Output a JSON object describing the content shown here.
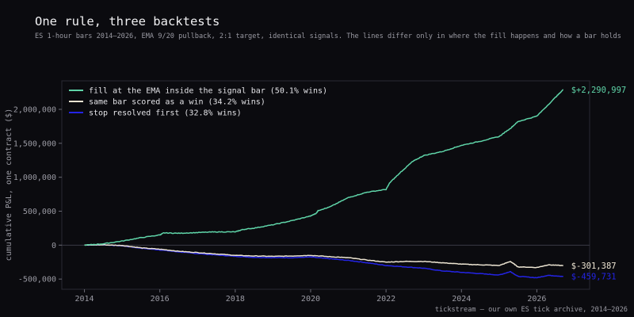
{
  "chart_data": {
    "type": "line",
    "title": "One rule, three backtests",
    "subtitle": "ES 1-hour bars 2014–2026, EMA 9/20 pullback, 2:1 target, identical signals. The lines differ only in where the fill happens and how a bar holds",
    "xlabel": "",
    "ylabel": "cumulative P&L, one contract ($)",
    "xlim": [
      2013.4,
      2027.4
    ],
    "ylim": [
      -650000,
      2420000
    ],
    "x_ticks": [
      2014,
      2016,
      2018,
      2020,
      2022,
      2024,
      2026
    ],
    "y_ticks": [
      -500000,
      0,
      500000,
      1000000,
      1500000,
      2000000
    ],
    "y_tick_labels": [
      "-500,000",
      "0",
      "500,000",
      "1,000,000",
      "1,500,000",
      "2,000,000"
    ],
    "legend_position": "top-left",
    "zero_line": true,
    "grid": false,
    "source": "tickstream — our own ES tick archive, 2014–2026",
    "series": [
      {
        "name": "fill at the EMA inside the signal bar  (50.1% wins)",
        "color": "#5fd4a8",
        "end_label": "$+2,290,997",
        "x": [
          2014.0,
          2014.5,
          2015.0,
          2015.5,
          2016.0,
          2016.1,
          2016.5,
          2017.0,
          2017.5,
          2018.0,
          2018.2,
          2018.5,
          2019.0,
          2019.5,
          2020.0,
          2020.15,
          2020.2,
          2020.5,
          2021.0,
          2021.5,
          2022.0,
          2022.1,
          2022.4,
          2022.7,
          2023.0,
          2023.5,
          2024.0,
          2024.5,
          2025.0,
          2025.3,
          2025.5,
          2026.0,
          2026.5,
          2026.7
        ],
        "y": [
          0,
          20000,
          60000,
          110000,
          150000,
          180000,
          175000,
          185000,
          195000,
          195000,
          230000,
          250000,
          300000,
          360000,
          430000,
          470000,
          510000,
          560000,
          700000,
          780000,
          820000,
          920000,
          1080000,
          1230000,
          1320000,
          1380000,
          1470000,
          1530000,
          1600000,
          1720000,
          1820000,
          1900000,
          2180000,
          2290997
        ]
      },
      {
        "name": "same bar scored as a win  (34.2% wins)",
        "color": "#ece4d2",
        "end_label": "$-301,387",
        "x": [
          2014.0,
          2014.5,
          2015.0,
          2015.5,
          2016.0,
          2016.5,
          2017.0,
          2017.5,
          2018.0,
          2018.5,
          2019.0,
          2019.5,
          2020.0,
          2020.5,
          2021.0,
          2021.5,
          2022.0,
          2022.5,
          2023.0,
          2023.5,
          2024.0,
          2024.5,
          2025.0,
          2025.3,
          2025.5,
          2026.0,
          2026.3,
          2026.7
        ],
        "y": [
          0,
          5000,
          -5000,
          -40000,
          -60000,
          -90000,
          -110000,
          -130000,
          -150000,
          -160000,
          -165000,
          -160000,
          -150000,
          -170000,
          -185000,
          -220000,
          -250000,
          -240000,
          -240000,
          -260000,
          -280000,
          -290000,
          -300000,
          -240000,
          -320000,
          -330000,
          -290000,
          -301387
        ]
      },
      {
        "name": "stop resolved first  (32.8% wins)",
        "color": "#2424e6",
        "end_label": "$-459,731",
        "x": [
          2014.0,
          2014.5,
          2015.0,
          2015.5,
          2016.0,
          2016.5,
          2017.0,
          2017.5,
          2018.0,
          2018.5,
          2019.0,
          2019.5,
          2020.0,
          2020.5,
          2021.0,
          2021.5,
          2022.0,
          2022.5,
          2023.0,
          2023.5,
          2024.0,
          2024.5,
          2025.0,
          2025.3,
          2025.5,
          2026.0,
          2026.3,
          2026.7
        ],
        "y": [
          0,
          5000,
          -10000,
          -45000,
          -70000,
          -100000,
          -125000,
          -145000,
          -165000,
          -180000,
          -185000,
          -185000,
          -175000,
          -200000,
          -225000,
          -260000,
          -300000,
          -320000,
          -340000,
          -380000,
          -400000,
          -420000,
          -440000,
          -390000,
          -460000,
          -480000,
          -445000,
          -459731
        ]
      }
    ]
  }
}
